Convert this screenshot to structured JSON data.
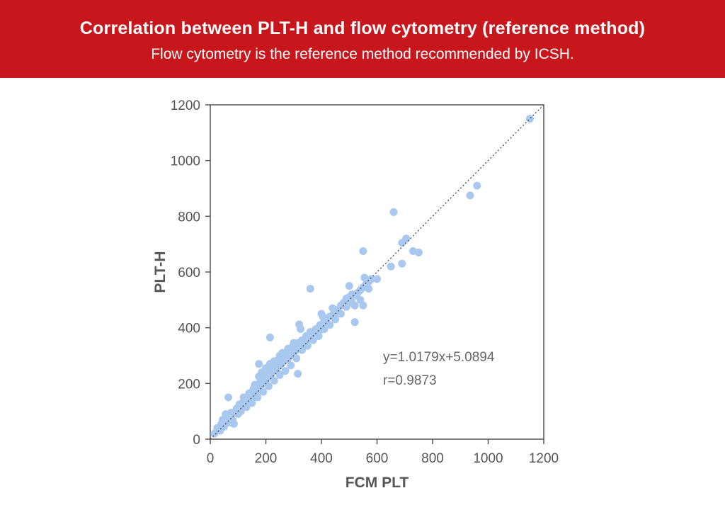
{
  "header": {
    "title": "Correlation between PLT-H and flow cytometry (reference method)",
    "subtitle": "Flow cytometry is the reference method recommended by ICSH."
  },
  "colors": {
    "banner": "#c8161d",
    "point": "#a9c8f0",
    "axis": "#555555",
    "reference_line": "#444444"
  },
  "chart_data": {
    "type": "scatter",
    "xlabel": "FCM PLT",
    "ylabel": "PLT-H",
    "xlim": [
      0,
      1200
    ],
    "ylim": [
      0,
      1200
    ],
    "xticks": [
      "0",
      "200",
      "400",
      "600",
      "800",
      "1000",
      "1200"
    ],
    "yticks": [
      "0",
      "200",
      "400",
      "600",
      "800",
      "1000",
      "1200"
    ],
    "grid": false,
    "reference_line": {
      "style": "dotted",
      "from": [
        0,
        0
      ],
      "to": [
        1200,
        1200
      ]
    },
    "regression": {
      "slope": 1.0179,
      "intercept": 5.0894,
      "r": 0.9873
    },
    "annotations": [
      "y=1.0179x+5.0894",
      "r=0.9873"
    ],
    "series": [
      {
        "points": [
          [
            15,
            20
          ],
          [
            25,
            40
          ],
          [
            35,
            30
          ],
          [
            40,
            55
          ],
          [
            45,
            70
          ],
          [
            50,
            45
          ],
          [
            55,
            90
          ],
          [
            60,
            75
          ],
          [
            65,
            60
          ],
          [
            70,
            85
          ],
          [
            75,
            95
          ],
          [
            80,
            70
          ],
          [
            85,
            55
          ],
          [
            90,
            100
          ],
          [
            95,
            110
          ],
          [
            100,
            90
          ],
          [
            105,
            125
          ],
          [
            110,
            100
          ],
          [
            115,
            130
          ],
          [
            120,
            115
          ],
          [
            125,
            140
          ],
          [
            130,
            120
          ],
          [
            135,
            150
          ],
          [
            140,
            135
          ],
          [
            145,
            165
          ],
          [
            150,
            145
          ],
          [
            155,
            180
          ],
          [
            160,
            160
          ],
          [
            165,
            190
          ],
          [
            170,
            175
          ],
          [
            175,
            200
          ],
          [
            180,
            185
          ],
          [
            185,
            215
          ],
          [
            190,
            200
          ],
          [
            195,
            230
          ],
          [
            200,
            210
          ],
          [
            205,
            240
          ],
          [
            210,
            225
          ],
          [
            215,
            250
          ],
          [
            220,
            235
          ],
          [
            225,
            265
          ],
          [
            230,
            250
          ],
          [
            235,
            275
          ],
          [
            240,
            255
          ],
          [
            245,
            285
          ],
          [
            250,
            265
          ],
          [
            255,
            295
          ],
          [
            260,
            275
          ],
          [
            265,
            300
          ],
          [
            270,
            285
          ],
          [
            275,
            310
          ],
          [
            280,
            290
          ],
          [
            285,
            320
          ],
          [
            290,
            300
          ],
          [
            295,
            330
          ],
          [
            300,
            310
          ],
          [
            305,
            340
          ],
          [
            310,
            320
          ],
          [
            315,
            345
          ],
          [
            320,
            330
          ],
          [
            330,
            355
          ],
          [
            340,
            345
          ],
          [
            345,
            370
          ],
          [
            350,
            360
          ],
          [
            360,
            385
          ],
          [
            370,
            375
          ],
          [
            380,
            395
          ],
          [
            390,
            385
          ],
          [
            395,
            410
          ],
          [
            400,
            400
          ],
          [
            410,
            425
          ],
          [
            420,
            415
          ],
          [
            430,
            440
          ],
          [
            440,
            445
          ],
          [
            450,
            465
          ],
          [
            460,
            455
          ],
          [
            470,
            480
          ],
          [
            480,
            490
          ],
          [
            490,
            505
          ],
          [
            500,
            510
          ],
          [
            510,
            520
          ],
          [
            520,
            515
          ],
          [
            530,
            525
          ],
          [
            540,
            535
          ],
          [
            550,
            545
          ],
          [
            560,
            555
          ],
          [
            570,
            565
          ],
          [
            580,
            575
          ],
          [
            120,
            150
          ],
          [
            140,
            165
          ],
          [
            160,
            195
          ],
          [
            175,
            225
          ],
          [
            185,
            240
          ],
          [
            200,
            255
          ],
          [
            215,
            270
          ],
          [
            230,
            280
          ],
          [
            250,
            300
          ],
          [
            260,
            310
          ],
          [
            280,
            325
          ],
          [
            300,
            345
          ],
          [
            130,
            115
          ],
          [
            150,
            130
          ],
          [
            170,
            150
          ],
          [
            190,
            170
          ],
          [
            210,
            190
          ],
          [
            230,
            210
          ],
          [
            250,
            230
          ],
          [
            270,
            245
          ],
          [
            290,
            265
          ],
          [
            310,
            290
          ],
          [
            330,
            320
          ],
          [
            350,
            335
          ],
          [
            370,
            355
          ],
          [
            390,
            370
          ],
          [
            410,
            395
          ],
          [
            430,
            410
          ],
          [
            450,
            430
          ],
          [
            470,
            450
          ],
          [
            490,
            475
          ],
          [
            510,
            490
          ],
          [
            65,
            150
          ],
          [
            175,
            270
          ],
          [
            215,
            365
          ],
          [
            320,
            412
          ],
          [
            325,
            395
          ],
          [
            360,
            540
          ],
          [
            400,
            450
          ],
          [
            405,
            440
          ],
          [
            440,
            470
          ],
          [
            500,
            550
          ],
          [
            520,
            420
          ],
          [
            550,
            675
          ],
          [
            555,
            580
          ],
          [
            570,
            540
          ],
          [
            520,
            480
          ],
          [
            540,
            500
          ],
          [
            550,
            480
          ],
          [
            600,
            575
          ],
          [
            650,
            620
          ],
          [
            660,
            815
          ],
          [
            690,
            705
          ],
          [
            690,
            630
          ],
          [
            705,
            720
          ],
          [
            730,
            675
          ],
          [
            750,
            670
          ],
          [
            935,
            875
          ],
          [
            960,
            910
          ],
          [
            1150,
            1150
          ],
          [
            315,
            235
          ],
          [
            75,
            60
          ]
        ]
      }
    ]
  }
}
